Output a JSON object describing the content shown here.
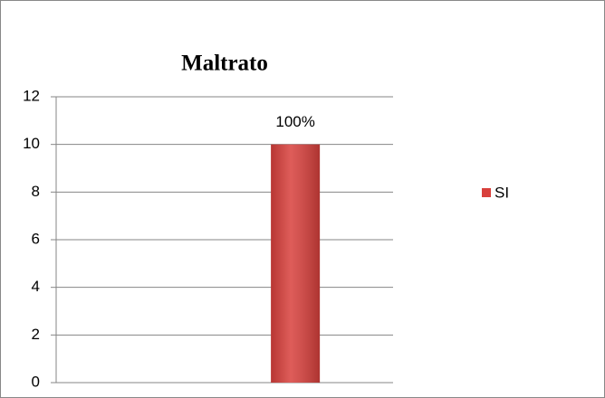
{
  "chart_data": {
    "type": "bar",
    "title": "Maltrato",
    "categories": [
      null,
      null
    ],
    "series": [
      {
        "name": "SI",
        "color": "#d8403c",
        "values": [
          null,
          10
        ]
      }
    ],
    "annotations": [
      "100%"
    ],
    "ylim": [
      0,
      12
    ],
    "yticks": [
      0,
      2,
      4,
      6,
      8,
      10,
      12
    ],
    "grid": true,
    "legend": "right"
  }
}
